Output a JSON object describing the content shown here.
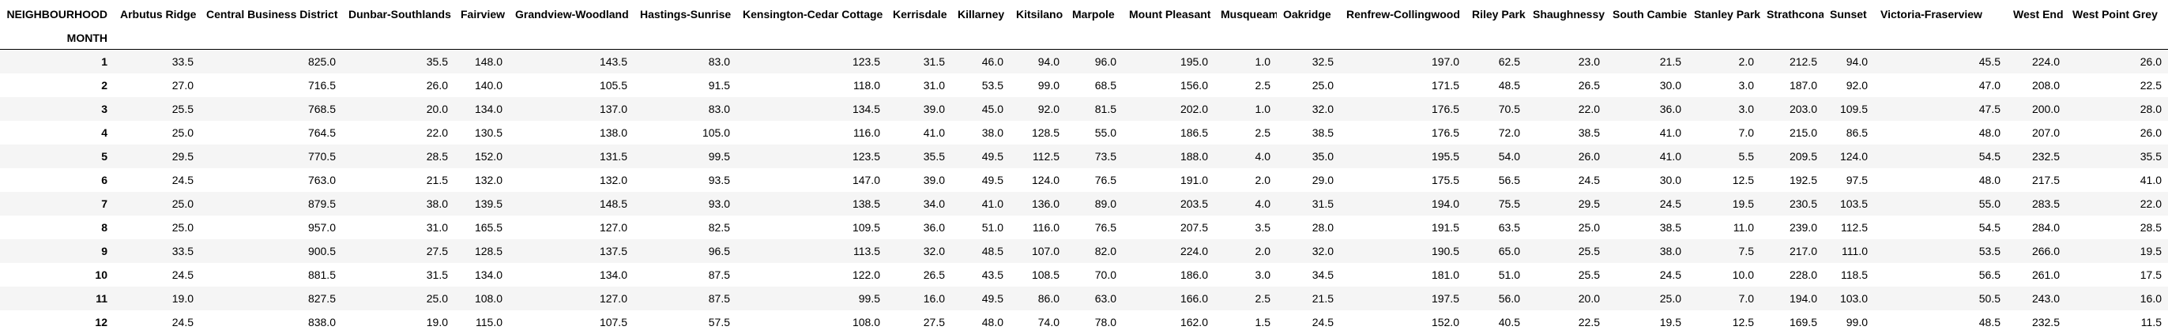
{
  "table": {
    "columns_label": "NEIGHBOURHOOD",
    "index_label": "MONTH",
    "columns": [
      "Arbutus Ridge",
      "Central Business District",
      "Dunbar-Southlands",
      "Fairview",
      "Grandview-Woodland",
      "Hastings-Sunrise",
      "Kensington-Cedar Cottage",
      "Kerrisdale",
      "Killarney",
      "Kitsilano",
      "Marpole",
      "Mount Pleasant",
      "Musqueam",
      "Oakridge",
      "Renfrew-Collingwood",
      "Riley Park",
      "Shaughnessy",
      "South Cambie",
      "Stanley Park",
      "Strathcona",
      "Sunset",
      "Victoria-Fraserview",
      "West End",
      "West Point Grey"
    ],
    "rows": [
      {
        "month": "1",
        "values": [
          "33.5",
          "825.0",
          "35.5",
          "148.0",
          "143.5",
          "83.0",
          "123.5",
          "31.5",
          "46.0",
          "94.0",
          "96.0",
          "195.0",
          "1.0",
          "32.5",
          "197.0",
          "62.5",
          "23.0",
          "21.5",
          "2.0",
          "212.5",
          "94.0",
          "45.5",
          "224.0",
          "26.0"
        ]
      },
      {
        "month": "2",
        "values": [
          "27.0",
          "716.5",
          "26.0",
          "140.0",
          "105.5",
          "91.5",
          "118.0",
          "31.0",
          "53.5",
          "99.0",
          "68.5",
          "156.0",
          "2.5",
          "25.0",
          "171.5",
          "48.5",
          "26.5",
          "30.0",
          "3.0",
          "187.0",
          "92.0",
          "47.0",
          "208.0",
          "22.5"
        ]
      },
      {
        "month": "3",
        "values": [
          "25.5",
          "768.5",
          "20.0",
          "134.0",
          "137.0",
          "83.0",
          "134.5",
          "39.0",
          "45.0",
          "92.0",
          "81.5",
          "202.0",
          "1.0",
          "32.0",
          "176.5",
          "70.5",
          "22.0",
          "36.0",
          "3.0",
          "203.0",
          "109.5",
          "47.5",
          "200.0",
          "28.0"
        ]
      },
      {
        "month": "4",
        "values": [
          "25.0",
          "764.5",
          "22.0",
          "130.5",
          "138.0",
          "105.0",
          "116.0",
          "41.0",
          "38.0",
          "128.5",
          "55.0",
          "186.5",
          "2.5",
          "38.5",
          "176.5",
          "72.0",
          "38.5",
          "41.0",
          "7.0",
          "215.0",
          "86.5",
          "48.0",
          "207.0",
          "26.0"
        ]
      },
      {
        "month": "5",
        "values": [
          "29.5",
          "770.5",
          "28.5",
          "152.0",
          "131.5",
          "99.5",
          "123.5",
          "35.5",
          "49.5",
          "112.5",
          "73.5",
          "188.0",
          "4.0",
          "35.0",
          "195.5",
          "54.0",
          "26.0",
          "41.0",
          "5.5",
          "209.5",
          "124.0",
          "54.5",
          "232.5",
          "35.5"
        ]
      },
      {
        "month": "6",
        "values": [
          "24.5",
          "763.0",
          "21.5",
          "132.0",
          "132.0",
          "93.5",
          "147.0",
          "39.0",
          "49.5",
          "124.0",
          "76.5",
          "191.0",
          "2.0",
          "29.0",
          "175.5",
          "56.5",
          "24.5",
          "30.0",
          "12.5",
          "192.5",
          "97.5",
          "48.0",
          "217.5",
          "41.0"
        ]
      },
      {
        "month": "7",
        "values": [
          "25.0",
          "879.5",
          "38.0",
          "139.5",
          "148.5",
          "93.0",
          "138.5",
          "34.0",
          "41.0",
          "136.0",
          "89.0",
          "203.5",
          "4.0",
          "31.5",
          "194.0",
          "75.5",
          "29.5",
          "24.5",
          "19.5",
          "230.5",
          "103.5",
          "55.0",
          "283.5",
          "22.0"
        ]
      },
      {
        "month": "8",
        "values": [
          "25.0",
          "957.0",
          "31.0",
          "165.5",
          "127.0",
          "82.5",
          "109.5",
          "36.0",
          "51.0",
          "116.0",
          "76.5",
          "207.5",
          "3.5",
          "28.0",
          "191.5",
          "63.5",
          "25.0",
          "38.5",
          "11.0",
          "239.0",
          "112.5",
          "54.5",
          "284.0",
          "28.5"
        ]
      },
      {
        "month": "9",
        "values": [
          "33.5",
          "900.5",
          "27.5",
          "128.5",
          "137.5",
          "96.5",
          "113.5",
          "32.0",
          "48.5",
          "107.0",
          "82.0",
          "224.0",
          "2.0",
          "32.0",
          "190.5",
          "65.0",
          "25.5",
          "38.0",
          "7.5",
          "217.0",
          "111.0",
          "53.5",
          "266.0",
          "19.5"
        ]
      },
      {
        "month": "10",
        "values": [
          "24.5",
          "881.5",
          "31.5",
          "134.0",
          "134.0",
          "87.5",
          "122.0",
          "26.5",
          "43.5",
          "108.5",
          "70.0",
          "186.0",
          "3.0",
          "34.5",
          "181.0",
          "51.0",
          "25.5",
          "24.5",
          "10.0",
          "228.0",
          "118.5",
          "56.5",
          "261.0",
          "17.5"
        ]
      },
      {
        "month": "11",
        "values": [
          "19.0",
          "827.5",
          "25.0",
          "108.0",
          "127.0",
          "87.5",
          "99.5",
          "16.0",
          "49.5",
          "86.0",
          "63.0",
          "166.0",
          "2.5",
          "21.5",
          "197.5",
          "56.0",
          "20.0",
          "25.0",
          "7.0",
          "194.0",
          "103.0",
          "50.5",
          "243.0",
          "16.0"
        ]
      },
      {
        "month": "12",
        "values": [
          "24.5",
          "838.0",
          "19.0",
          "115.0",
          "107.5",
          "57.5",
          "108.0",
          "27.5",
          "48.0",
          "74.0",
          "78.0",
          "162.0",
          "1.5",
          "24.5",
          "152.0",
          "40.5",
          "22.5",
          "19.5",
          "12.5",
          "169.5",
          "99.0",
          "48.5",
          "232.5",
          "11.5"
        ]
      }
    ]
  }
}
